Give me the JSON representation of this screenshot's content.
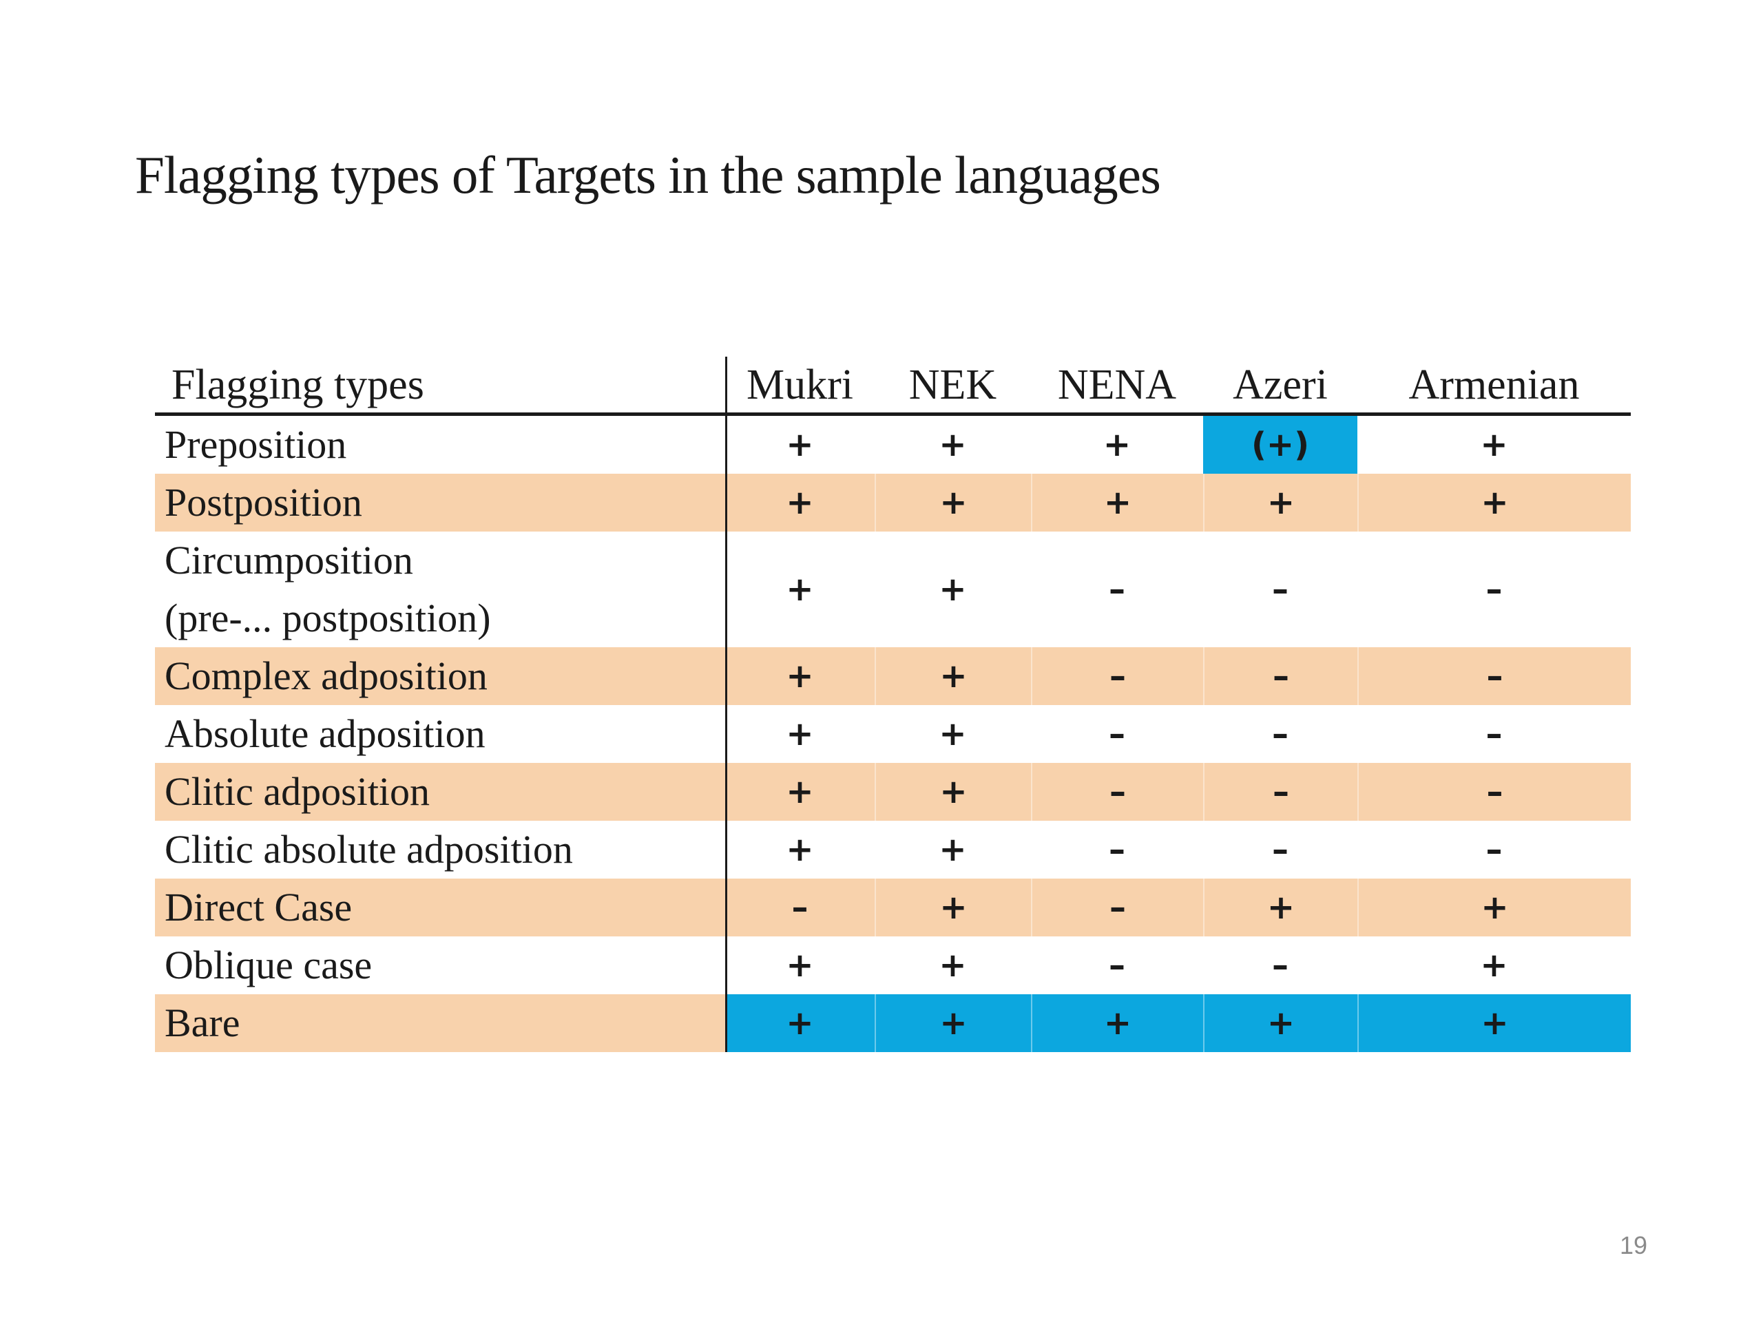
{
  "slide": {
    "title": "Flagging types of Targets in the sample languages",
    "page_number": "19"
  },
  "colors": {
    "band_peach": "#F8D2AC",
    "highlight_blue": "#0CA7DF",
    "text_black": "#1a1a1a",
    "page_number_gray": "#8a8a8a"
  },
  "table": {
    "header_label": "Flagging types",
    "columns": [
      "Mukri",
      "NEK",
      "NENA",
      "Azeri",
      "Armenian"
    ],
    "rows": [
      {
        "label": "Preposition",
        "values": [
          "+",
          "+",
          "+",
          "(+)",
          "+"
        ],
        "shade": "white",
        "highlight_cells": [
          3
        ]
      },
      {
        "label": "Postposition",
        "values": [
          "+",
          "+",
          "+",
          "+",
          "+"
        ],
        "shade": "peach"
      },
      {
        "label": "Circumposition",
        "label2": "(pre-... postposition)",
        "values": [
          "+",
          "+",
          "–",
          "–",
          "–"
        ],
        "shade": "white",
        "double": true
      },
      {
        "label": "Complex adposition",
        "values": [
          "+",
          "+",
          "–",
          "–",
          "–"
        ],
        "shade": "peach"
      },
      {
        "label": "Absolute adposition",
        "values": [
          "+",
          "+",
          "–",
          "–",
          "–"
        ],
        "shade": "white"
      },
      {
        "label": "Clitic adposition",
        "values": [
          "+",
          "+",
          "–",
          "–",
          "–"
        ],
        "shade": "peach"
      },
      {
        "label": "Clitic absolute adposition",
        "values": [
          "+",
          "+",
          "–",
          "–",
          "–"
        ],
        "shade": "white"
      },
      {
        "label": "Direct Case",
        "values": [
          "–",
          "+",
          "–",
          "+",
          "+"
        ],
        "shade": "peach"
      },
      {
        "label": "Oblique case",
        "values": [
          "+",
          "+",
          "–",
          "–",
          "+"
        ],
        "shade": "white"
      },
      {
        "label": "Bare",
        "values": [
          "+",
          "+",
          "+",
          "+",
          "+"
        ],
        "shade": "peach",
        "data_highlight": "all"
      }
    ]
  }
}
